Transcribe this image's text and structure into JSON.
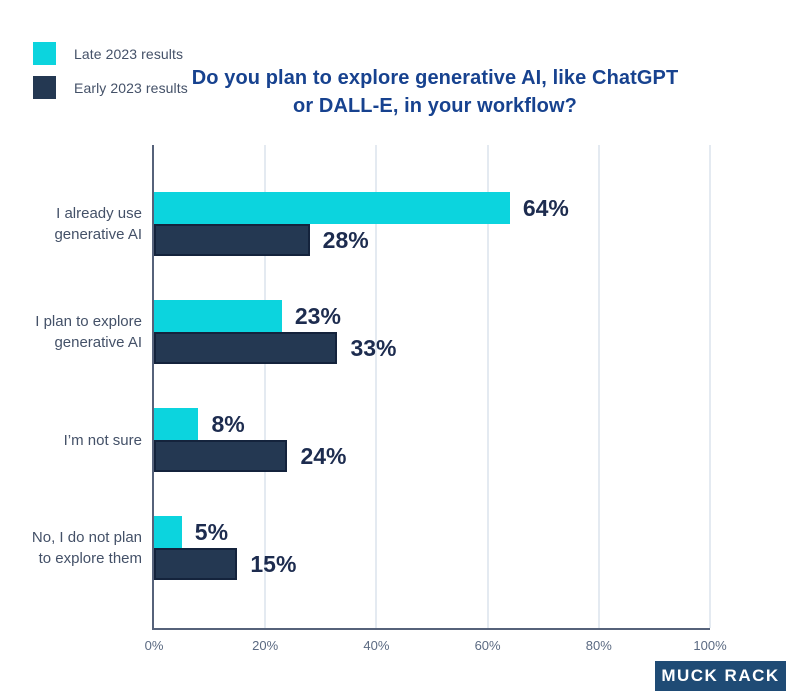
{
  "title": {
    "lines": [
      "Do you plan to explore generative AI, like ChatGPT",
      "or DALL-E, in your workflow?"
    ]
  },
  "legend": {
    "items": [
      {
        "label": "Late 2023 results",
        "color": "#0cd4de"
      },
      {
        "label": "Early 2023 results",
        "color": "#243852"
      }
    ]
  },
  "chart_data": {
    "type": "bar",
    "orientation": "horizontal",
    "title": "Do you plan to explore generative AI, like ChatGPT or DALL-E, in your workflow?",
    "categories": [
      "I already use generative AI",
      "I plan to explore generative AI",
      "I’m not sure",
      "No, I do not plan to explore them"
    ],
    "category_display_lines": [
      [
        "I already use",
        "generative AI"
      ],
      [
        "I plan to explore",
        "generative AI"
      ],
      [
        "I’m not sure"
      ],
      [
        "No, I do not plan",
        "to explore them"
      ]
    ],
    "series": [
      {
        "name": "Late 2023 results",
        "color": "#0cd4de",
        "values": [
          64,
          23,
          8,
          5
        ]
      },
      {
        "name": "Early 2023 results",
        "color": "#243852",
        "values": [
          28,
          33,
          24,
          15
        ]
      }
    ],
    "value_labels": [
      [
        "64%",
        "23%",
        "8%",
        "5%"
      ],
      [
        "28%",
        "33%",
        "24%",
        "15%"
      ]
    ],
    "value_suffix": "%",
    "xlim": [
      0,
      100
    ],
    "x_ticks": [
      "0%",
      "20%",
      "40%",
      "60%",
      "80%",
      "100%"
    ],
    "grid": true,
    "legend_position": "top-left"
  },
  "colors": {
    "late_2023_bar": "#0cd4de",
    "early_2023_bar": "#243852",
    "early_2023_bar_border": "#14233c",
    "title_text": "#17428f",
    "value_label_text": "#1d2c4f",
    "axis_line": "#56627a",
    "gridline": "#e4eaf1",
    "brand_background": "#1f4b75"
  },
  "footer": {
    "brand": "MUCK RACK"
  }
}
